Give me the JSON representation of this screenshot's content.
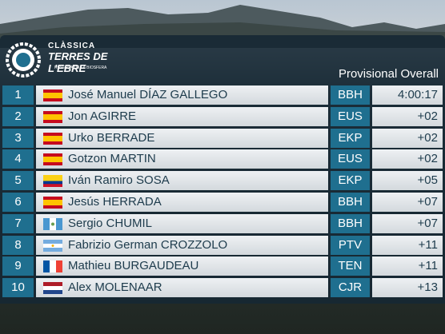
{
  "header": {
    "logo_top": "CLÀSSICA",
    "logo_main": "TERRES DE L'EBRE",
    "logo_sub": "RESERVA DE LA BIOSFERA",
    "title": "Provisional Overall"
  },
  "table": {
    "rows": [
      [
        1,
        "José Manuel DÍAZ GALLEGO",
        "BBH",
        "4:00:17"
      ],
      [
        2,
        "Jon AGIRRE",
        "EUS",
        "+02"
      ],
      [
        3,
        "Urko BERRADE",
        "EKP",
        "+02"
      ],
      [
        4,
        "Gotzon MARTIN",
        "EUS",
        "+02"
      ],
      [
        5,
        "Iván Ramiro SOSA",
        "EKP",
        "+05"
      ],
      [
        6,
        "Jesús HERRADA",
        "BBH",
        "+07"
      ],
      [
        7,
        "Sergio CHUMIL",
        "BBH",
        "+07"
      ],
      [
        8,
        "Fabrizio German CROZZOLO",
        "PTV",
        "+11"
      ],
      [
        9,
        "Mathieu BURGAUDEAU",
        "TEN",
        "+11"
      ],
      [
        10,
        "Alex MOLENAAR",
        "CJR",
        "+13"
      ]
    ]
  }
}
